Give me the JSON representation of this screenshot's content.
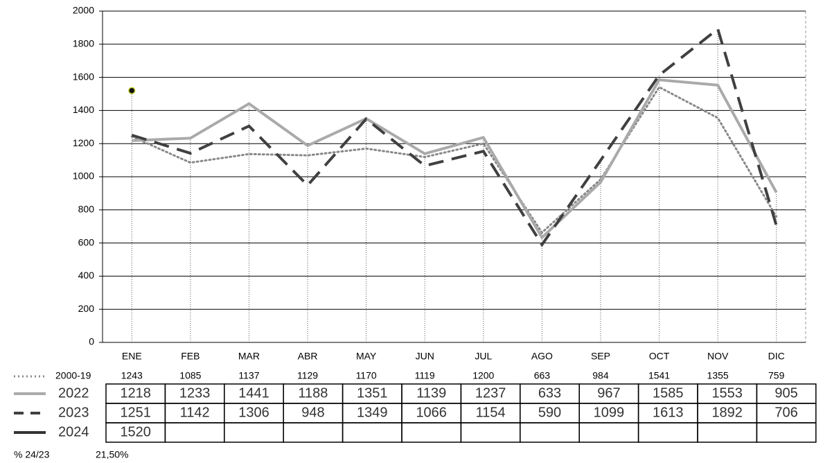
{
  "chart_data": {
    "type": "line",
    "categories": [
      "ENE",
      "FEB",
      "MAR",
      "ABR",
      "MAY",
      "JUN",
      "JUL",
      "AGO",
      "SEP",
      "OCT",
      "NOV",
      "DIC"
    ],
    "series": [
      {
        "name": "2000-19",
        "color": "#888888",
        "line_style": "dotted",
        "values": [
          1243,
          1085,
          1137,
          1129,
          1170,
          1119,
          1200,
          663,
          984,
          1541,
          1355,
          759
        ]
      },
      {
        "name": "2022",
        "color": "#aaaaaa",
        "line_style": "solid",
        "values": [
          1218,
          1233,
          1441,
          1188,
          1351,
          1139,
          1237,
          633,
          967,
          1585,
          1553,
          905
        ]
      },
      {
        "name": "2023",
        "color": "#404040",
        "line_style": "dashed",
        "values": [
          1251,
          1142,
          1306,
          948,
          1349,
          1066,
          1154,
          590,
          1099,
          1613,
          1892,
          706
        ]
      },
      {
        "name": "2024",
        "color": "#333333",
        "line_style": "solid",
        "values": [
          1520,
          null,
          null,
          null,
          null,
          null,
          null,
          null,
          null,
          null,
          null,
          null
        ]
      }
    ],
    "ylim": [
      0,
      2000
    ],
    "yticks": [
      0,
      200,
      400,
      600,
      800,
      1000,
      1200,
      1400,
      1600,
      1800,
      2000
    ],
    "grid": true,
    "footer": {
      "label": "% 24/23",
      "value": "21,50%"
    }
  }
}
